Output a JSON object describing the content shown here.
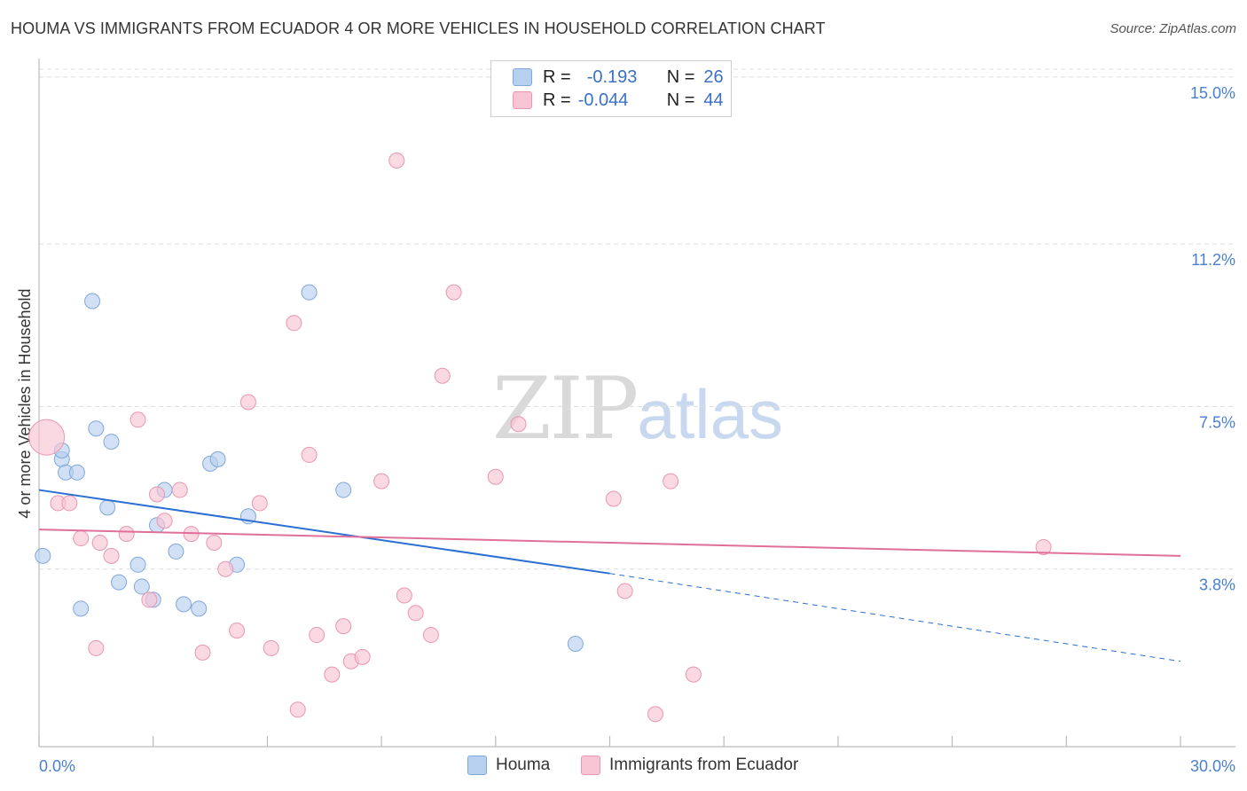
{
  "title": "HOUMA VS IMMIGRANTS FROM ECUADOR 4 OR MORE VEHICLES IN HOUSEHOLD CORRELATION CHART",
  "source": "Source: ZipAtlas.com",
  "watermark": {
    "zip": "ZIP",
    "atlas": "atlas"
  },
  "legend": {
    "rows": [
      {
        "r_label": "R =",
        "r_value": "-0.193",
        "n_label": "N =",
        "n_value": "26"
      },
      {
        "r_label": "R =",
        "r_value": "-0.044",
        "n_label": "N =",
        "n_value": "44"
      }
    ]
  },
  "bottom_legend": {
    "houma": "Houma",
    "ecuador": "Immigrants from Ecuador"
  },
  "colors": {
    "houma_fill": "#b8d0f0",
    "houma_stroke": "#7fa8dc",
    "houma_line": "#2a6fd1",
    "ecuador_fill": "#f7c4d4",
    "ecuador_stroke": "#e996b2",
    "ecuador_line": "#e0709a",
    "grid": "#dddddd",
    "tick_label": "#4a7fcf"
  },
  "chart_data": {
    "type": "scatter",
    "xlabel": "",
    "ylabel": "4 or more Vehicles in Household",
    "xlim": [
      0,
      30
    ],
    "ylim": [
      0,
      15.3
    ],
    "y_ticks": [
      {
        "value": 3.8,
        "label": "3.8%"
      },
      {
        "value": 7.5,
        "label": "7.5%"
      },
      {
        "value": 11.2,
        "label": "11.2%"
      },
      {
        "value": 15.0,
        "label": "15.0%"
      }
    ],
    "x_tick_labels": [
      {
        "value": 0,
        "label": "0.0%"
      },
      {
        "value": 30,
        "label": "30.0%"
      }
    ],
    "x_minor_ticks": [
      0,
      3,
      6,
      9,
      12,
      15,
      18,
      21,
      24,
      27,
      30
    ],
    "grid": true,
    "series": [
      {
        "name": "Houma",
        "points": [
          [
            0.1,
            4.1
          ],
          [
            0.6,
            6.3
          ],
          [
            0.6,
            6.5
          ],
          [
            0.7,
            6.0
          ],
          [
            1.0,
            6.0
          ],
          [
            1.1,
            2.9
          ],
          [
            1.4,
            9.9
          ],
          [
            1.5,
            7.0
          ],
          [
            1.8,
            5.2
          ],
          [
            1.9,
            6.7
          ],
          [
            2.1,
            3.5
          ],
          [
            2.6,
            3.9
          ],
          [
            2.7,
            3.4
          ],
          [
            3.0,
            3.1
          ],
          [
            3.1,
            4.8
          ],
          [
            3.3,
            5.6
          ],
          [
            3.6,
            4.2
          ],
          [
            3.8,
            3.0
          ],
          [
            4.2,
            2.9
          ],
          [
            4.5,
            6.2
          ],
          [
            4.7,
            6.3
          ],
          [
            5.2,
            3.9
          ],
          [
            5.5,
            5.0
          ],
          [
            7.1,
            10.1
          ],
          [
            8.0,
            5.6
          ],
          [
            14.1,
            2.1
          ]
        ],
        "trend": {
          "x0": 0,
          "y0": 5.6,
          "x1": 15.0,
          "y1": 3.7,
          "dash_x1": 30.0,
          "dash_y1": 1.7
        }
      },
      {
        "name": "Immigrants from Ecuador",
        "points": [
          [
            0.2,
            6.8
          ],
          [
            0.5,
            5.3
          ],
          [
            0.8,
            5.3
          ],
          [
            1.1,
            4.5
          ],
          [
            1.5,
            2.0
          ],
          [
            1.6,
            4.4
          ],
          [
            1.9,
            4.1
          ],
          [
            2.3,
            4.6
          ],
          [
            2.6,
            7.2
          ],
          [
            2.9,
            3.1
          ],
          [
            3.1,
            5.5
          ],
          [
            3.3,
            4.9
          ],
          [
            3.7,
            5.6
          ],
          [
            4.0,
            4.6
          ],
          [
            4.3,
            1.9
          ],
          [
            4.6,
            4.4
          ],
          [
            4.9,
            3.8
          ],
          [
            5.2,
            2.4
          ],
          [
            5.5,
            7.6
          ],
          [
            5.8,
            5.3
          ],
          [
            6.1,
            2.0
          ],
          [
            6.7,
            9.4
          ],
          [
            6.8,
            0.6
          ],
          [
            7.1,
            6.4
          ],
          [
            7.3,
            2.3
          ],
          [
            7.7,
            1.4
          ],
          [
            8.0,
            2.5
          ],
          [
            8.2,
            1.7
          ],
          [
            8.5,
            1.8
          ],
          [
            9.0,
            5.8
          ],
          [
            9.4,
            13.1
          ],
          [
            9.6,
            3.2
          ],
          [
            9.9,
            2.8
          ],
          [
            10.3,
            2.3
          ],
          [
            10.6,
            8.2
          ],
          [
            10.9,
            10.1
          ],
          [
            12.0,
            5.9
          ],
          [
            12.6,
            7.1
          ],
          [
            15.1,
            5.4
          ],
          [
            15.4,
            3.3
          ],
          [
            16.2,
            0.5
          ],
          [
            16.6,
            5.8
          ],
          [
            17.2,
            1.4
          ],
          [
            26.4,
            4.3
          ]
        ],
        "trend": {
          "x0": 0,
          "y0": 4.7,
          "x1": 30.0,
          "y1": 4.1
        }
      }
    ]
  }
}
